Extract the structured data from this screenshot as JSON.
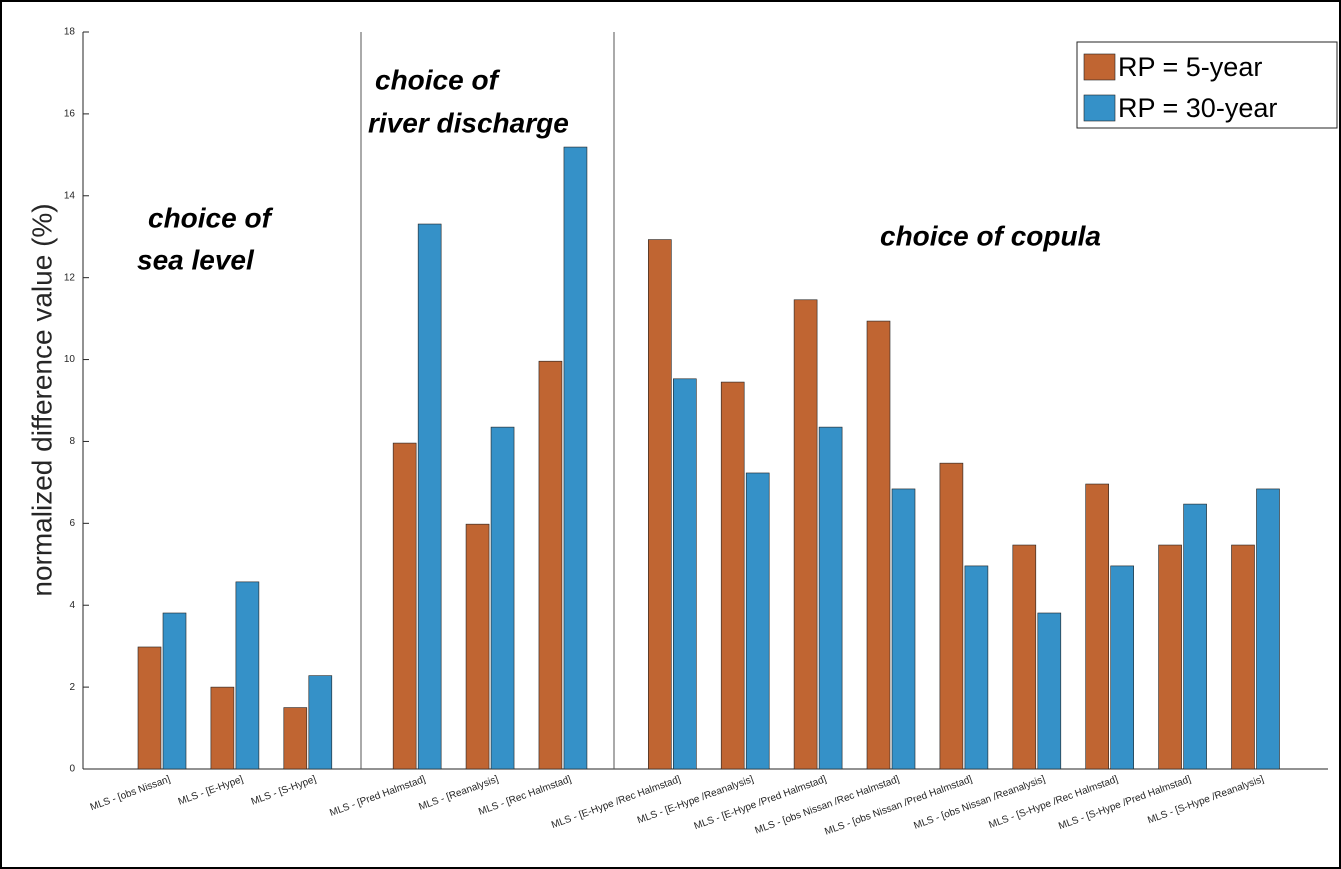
{
  "chart_data": {
    "type": "bar",
    "ylabel": "normalized difference value (%)",
    "categories": [
      "MLS - [obs Nissan]",
      "MLS - [E-Hype]",
      "MLS - [S-Hype]",
      "MLS - [Pred Halmstad]",
      "MLS - [Reanalysis]",
      "MLS - [Rec Halmstad]",
      "MLS - [E-Hype /Rec Halmstad]",
      "MLS - [E-Hype /Reanalysis]",
      "MLS - [E-Hype /Pred Halmstad]",
      "MLS - [obs Nissan /Rec Halmstad]",
      "MLS - [obs Nissan /Pred Halmstad]",
      "MLS - [obs Nissan /Reanalysis]",
      "MLS - [S-Hype /Rec Halmstad]",
      "MLS - [S-Hype /Pred Halmstad]",
      "MLS - [S-Hype /Reanalysis]"
    ],
    "series": [
      {
        "name": "RP = 5-year",
        "color": "#c06532",
        "values": [
          2.98,
          2.0,
          1.5,
          7.96,
          5.98,
          9.96,
          12.93,
          9.45,
          11.46,
          10.94,
          7.47,
          5.47,
          6.96,
          5.47,
          5.47
        ]
      },
      {
        "name": "RP = 30-year",
        "color": "#3591c8",
        "values": [
          3.81,
          4.57,
          2.28,
          13.31,
          8.35,
          15.19,
          9.53,
          7.23,
          8.35,
          6.84,
          4.96,
          3.81,
          4.96,
          6.47,
          6.84
        ]
      }
    ],
    "ylim": [
      0,
      18
    ],
    "yticks": [
      0,
      2,
      4,
      6,
      8,
      10,
      12,
      14,
      16,
      18
    ],
    "legend": "upper right",
    "annotations": [
      [
        "choice of",
        "sea level"
      ],
      [
        "choice of",
        "river discharge"
      ],
      [
        "choice of copula"
      ]
    ]
  }
}
